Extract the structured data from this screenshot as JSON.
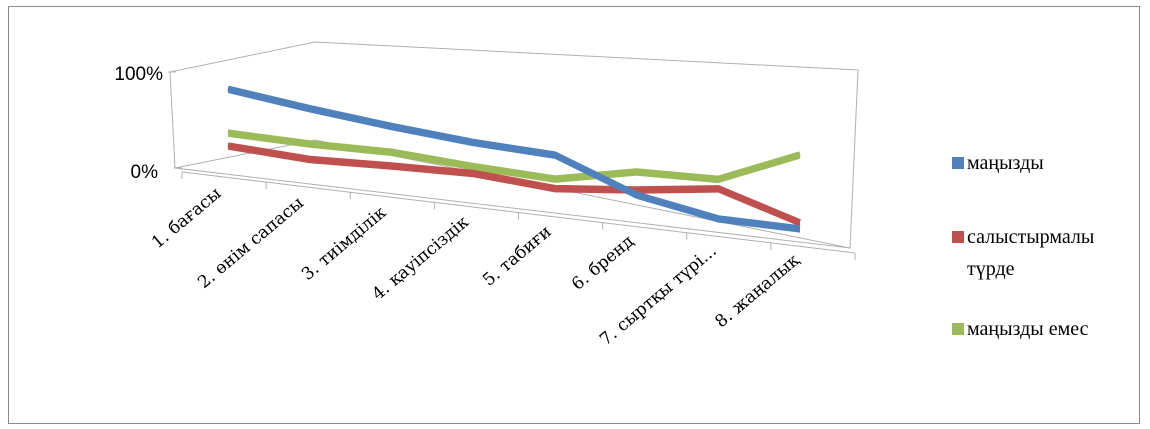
{
  "chart_data": {
    "type": "line",
    "style": "3d-line",
    "title": "",
    "xlabel": "",
    "ylabel": "",
    "ylim": [
      0,
      1
    ],
    "y_ticks": [
      "0%",
      "100%"
    ],
    "grid": false,
    "legend_position": "right",
    "categories": [
      "1. бағасы",
      "2. өнім сапасы",
      "3. тиімділік",
      "4. қауіпсіздік",
      "5. табиғи",
      "6. бренд",
      "7. сыртқы түрі...",
      "8. жаңалық"
    ],
    "series": [
      {
        "name": "маңызды",
        "values": [
          0.93,
          0.82,
          0.73,
          0.66,
          0.63,
          0.28,
          0.12,
          0.12
        ],
        "color": "#4f81bd"
      },
      {
        "name": "салыстырмалы түрде",
        "values": [
          0.27,
          0.23,
          0.27,
          0.3,
          0.24,
          0.34,
          0.47,
          0.19
        ],
        "color": "#c0504d"
      },
      {
        "name": "маңызды емес",
        "values": [
          0.42,
          0.41,
          0.43,
          0.38,
          0.35,
          0.55,
          0.58,
          0.98
        ],
        "color": "#9bbb59"
      }
    ]
  }
}
